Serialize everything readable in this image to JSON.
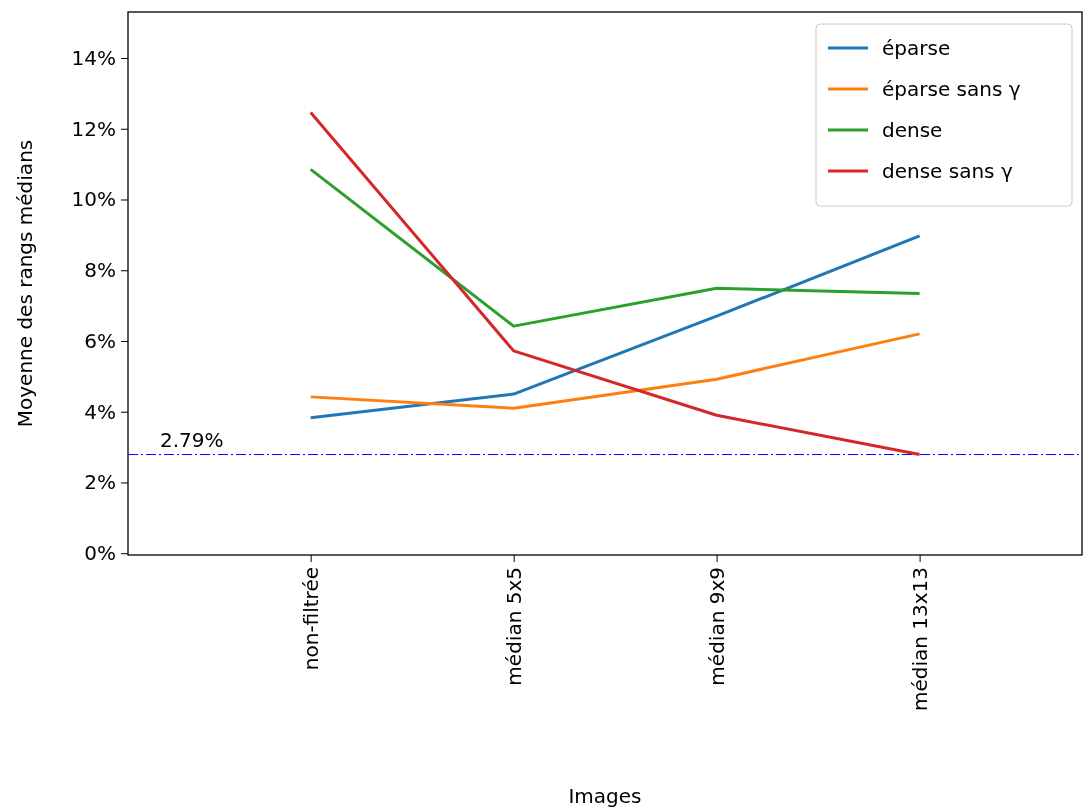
{
  "chart_data": {
    "type": "line",
    "xlabel": "Images",
    "ylabel": "Moyenne des rangs médians",
    "categories": [
      "non-filtrée",
      "médian 5x5",
      "médian 9x9",
      "médian 13x13"
    ],
    "series": [
      {
        "name": "éparse",
        "color": "#1f77b4",
        "values": [
          3.83,
          4.5,
          6.7,
          8.97
        ]
      },
      {
        "name": "éparse sans γ",
        "color": "#ff7f0e",
        "values": [
          4.42,
          4.1,
          4.92,
          6.2
        ]
      },
      {
        "name": "dense",
        "color": "#2ca02c",
        "values": [
          10.85,
          6.42,
          7.49,
          7.34
        ]
      },
      {
        "name": "dense sans γ",
        "color": "#d62728",
        "values": [
          12.46,
          5.72,
          3.9,
          2.79
        ]
      }
    ],
    "ylim": [
      -0.05,
      15.3
    ],
    "yticks": [
      {
        "value": 0,
        "label": "0%"
      },
      {
        "value": 2,
        "label": "2%"
      },
      {
        "value": 4,
        "label": "4%"
      },
      {
        "value": 6,
        "label": "6%"
      },
      {
        "value": 8,
        "label": "8%"
      },
      {
        "value": 10,
        "label": "10%"
      },
      {
        "value": 12,
        "label": "12%"
      },
      {
        "value": 14,
        "label": "14%"
      }
    ],
    "ref_lines": [
      {
        "axis": "y",
        "value": 2.79,
        "label": "2.79%",
        "color": "#0000ff",
        "line_style": "dashed"
      }
    ],
    "legend": "top right",
    "grid": false,
    "marker": "none",
    "line_style": "solid"
  }
}
